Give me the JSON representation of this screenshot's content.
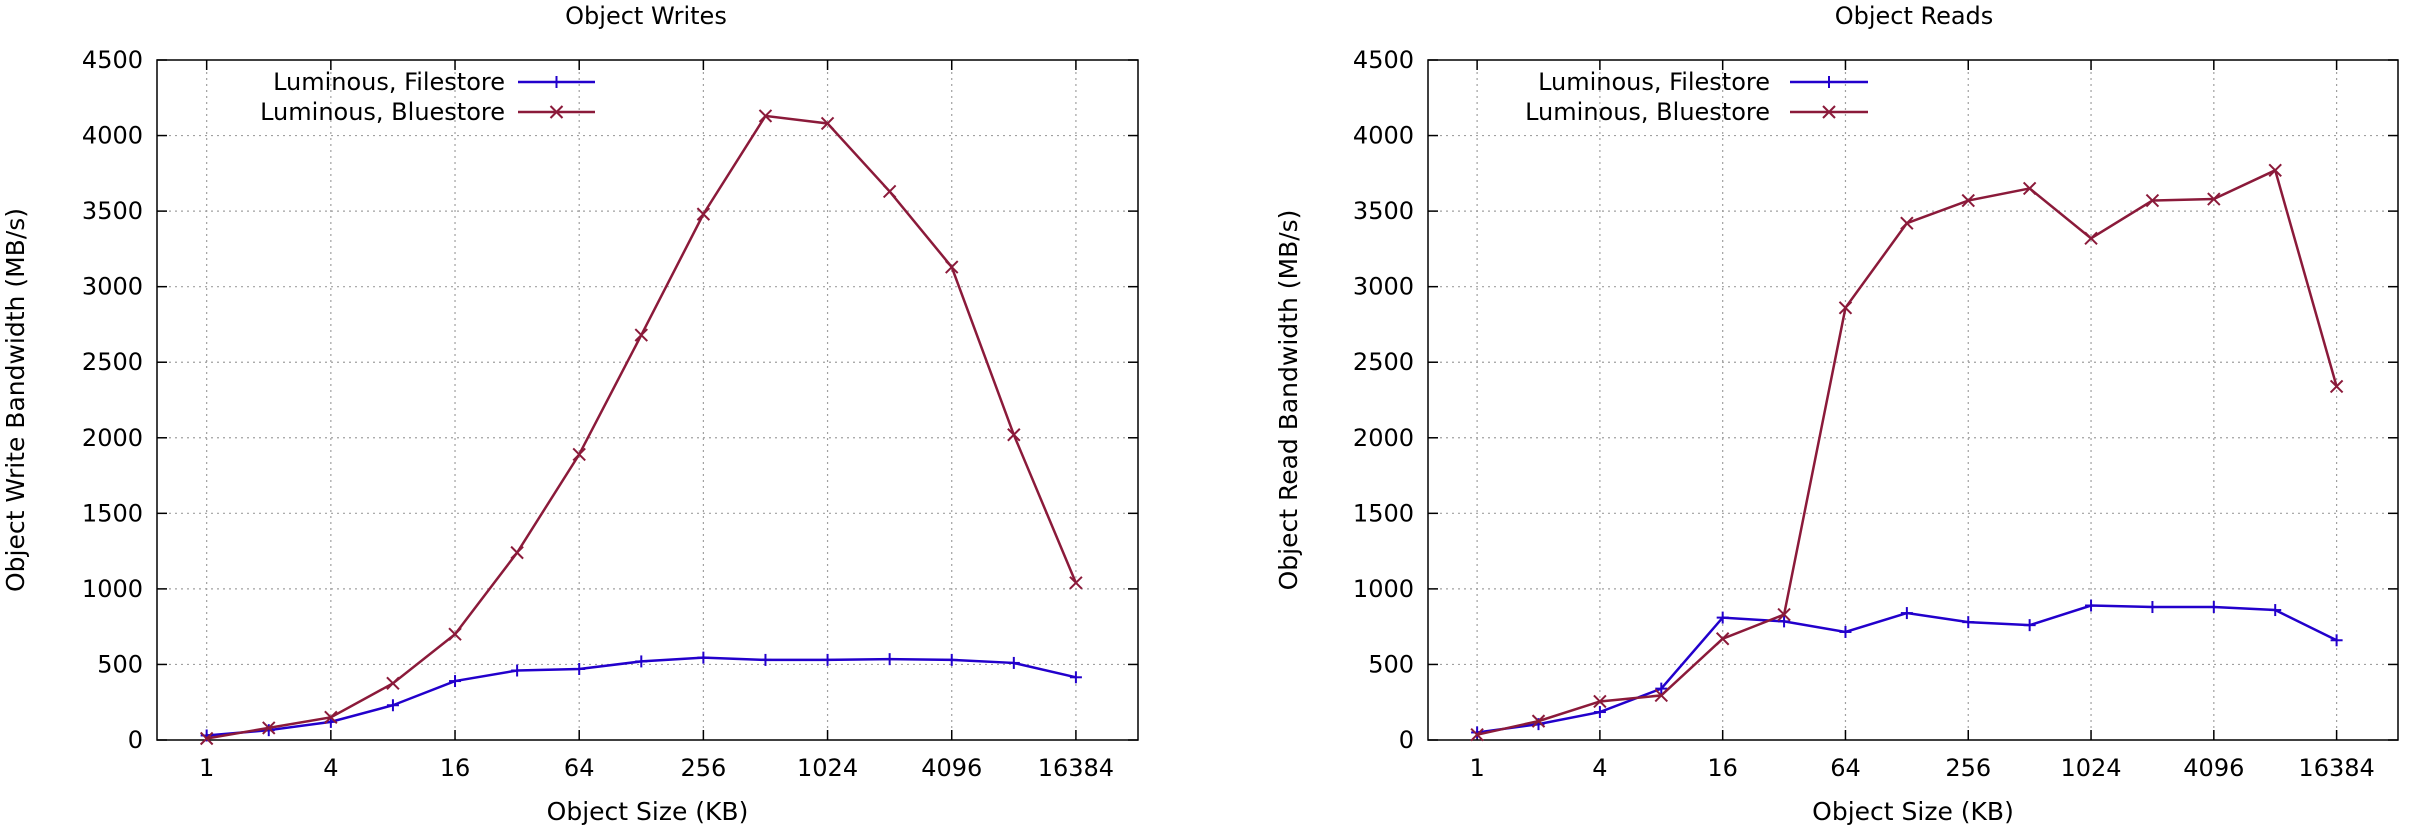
{
  "chart_data": [
    {
      "type": "line",
      "title": "Object Writes",
      "xlabel": "Object Size (KB)",
      "ylabel": "Object Write Bandwidth (MB/s)",
      "xscale": "log2",
      "x_ticks": [
        "1",
        "4",
        "16",
        "64",
        "256",
        "1024",
        "4096",
        "16384"
      ],
      "y_ticks": [
        "0",
        "500",
        "1000",
        "1500",
        "2000",
        "2500",
        "3000",
        "3500",
        "4000",
        "4500"
      ],
      "ylim": [
        0,
        4500
      ],
      "grid": true,
      "legend_position": "top-left",
      "x": [
        1,
        2,
        4,
        8,
        16,
        32,
        64,
        128,
        256,
        512,
        1024,
        2048,
        4096,
        8192,
        16384
      ],
      "series": [
        {
          "name": "Luminous, Filestore",
          "color": "#2200cc",
          "marker": "plus",
          "values": [
            30,
            65,
            120,
            230,
            390,
            460,
            470,
            520,
            545,
            530,
            530,
            535,
            530,
            510,
            415
          ]
        },
        {
          "name": "Luminous, Bluestore",
          "color": "#8b1a3a",
          "marker": "cross",
          "values": [
            10,
            80,
            150,
            375,
            700,
            1240,
            1890,
            2680,
            3480,
            4130,
            4080,
            3630,
            3130,
            2020,
            1040
          ]
        }
      ]
    },
    {
      "type": "line",
      "title": "Object Reads",
      "xlabel": "Object Size (KB)",
      "ylabel": "Object Read Bandwidth (MB/s)",
      "xscale": "log2",
      "x_ticks": [
        "1",
        "4",
        "16",
        "64",
        "256",
        "1024",
        "4096",
        "16384"
      ],
      "y_ticks": [
        "0",
        "500",
        "1000",
        "1500",
        "2000",
        "2500",
        "3000",
        "3500",
        "4000",
        "4500"
      ],
      "ylim": [
        0,
        4500
      ],
      "grid": true,
      "legend_position": "top-left",
      "x": [
        1,
        2,
        4,
        8,
        16,
        32,
        64,
        128,
        256,
        512,
        1024,
        2048,
        4096,
        8192,
        16384
      ],
      "series": [
        {
          "name": "Luminous, Filestore",
          "color": "#2200cc",
          "marker": "plus",
          "values": [
            50,
            105,
            185,
            340,
            810,
            785,
            715,
            840,
            780,
            760,
            890,
            880,
            880,
            860,
            660
          ]
        },
        {
          "name": "Luminous, Bluestore",
          "color": "#8b1a3a",
          "marker": "cross",
          "values": [
            35,
            125,
            255,
            295,
            670,
            830,
            2860,
            3420,
            3570,
            3650,
            3320,
            3570,
            3580,
            3770,
            2340
          ]
        }
      ]
    }
  ]
}
